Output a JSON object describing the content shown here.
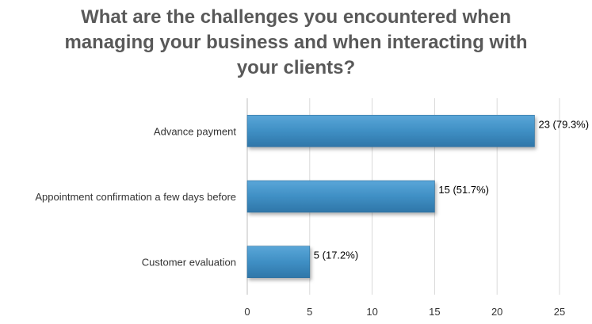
{
  "chart_data": {
    "type": "bar",
    "orientation": "horizontal",
    "title_lines": [
      "What are the challenges you encountered when",
      "managing your business and when interacting with",
      "your clients?"
    ],
    "categories": [
      "Advance payment",
      "Appointment confirmation a few days before",
      "Customer evaluation"
    ],
    "values": [
      23,
      15,
      5
    ],
    "data_labels": [
      "23 (79.3%)",
      "15 (51.7%)",
      "5 (17.2%)"
    ],
    "xticks": [
      "0",
      "5",
      "10",
      "15",
      "20",
      "25"
    ],
    "xlim": [
      0,
      25
    ],
    "xlabel": "",
    "ylabel": "",
    "grid": "vertical",
    "legend": "none",
    "bar_color": "#3f8fc4"
  }
}
